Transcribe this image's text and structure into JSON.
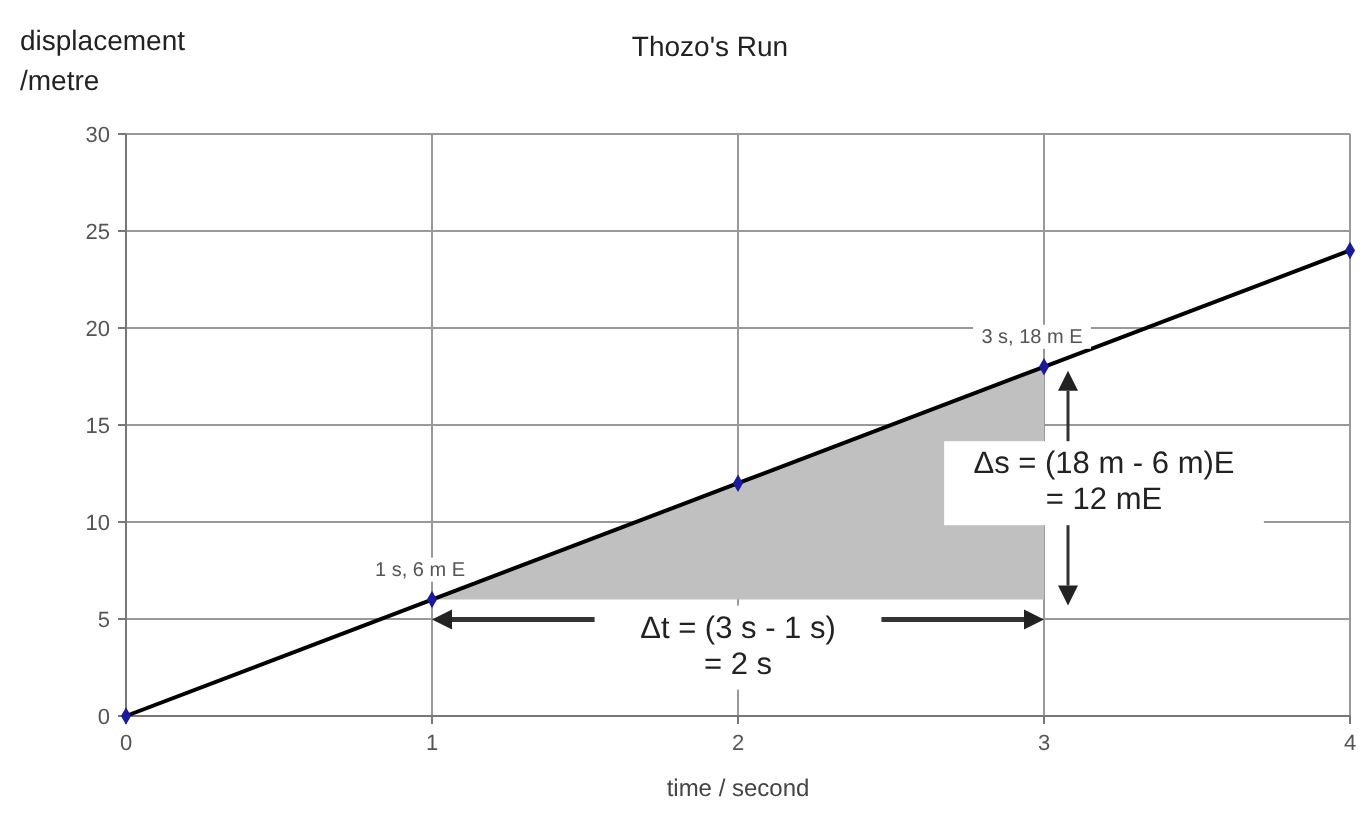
{
  "chart_data": {
    "type": "line",
    "title": "Thozo's Run",
    "xlabel": "time / second",
    "ylabel": "displacement\n/metre",
    "x": [
      0,
      1,
      2,
      3,
      4
    ],
    "series": [
      {
        "color": "#000000",
        "colors": [
          "#1a1aa0",
          "#1a1aa0",
          "#1a1aa0",
          "#1a1aa0",
          "#1a1aa0"
        ],
        "values": [
          0,
          6,
          12,
          18,
          24
        ]
      }
    ],
    "xlim": [
      0,
      4
    ],
    "ylim": [
      0,
      30
    ],
    "xticks": [
      0,
      1,
      2,
      3,
      4
    ],
    "yticks": [
      0,
      5,
      10,
      15,
      20,
      25,
      30
    ],
    "grid": true,
    "marker": "diamond",
    "line_style": "solid",
    "annotations": [
      {
        "text": "1 s, 6 m E",
        "x": 1,
        "y": 6
      },
      {
        "text": "3 s, 18 m E",
        "x": 3,
        "y": 18
      },
      "Δt = (3 s - 1 s)\n= 2 s",
      "Δs = (18 m - 6 m)E\n= 12 mE"
    ]
  }
}
